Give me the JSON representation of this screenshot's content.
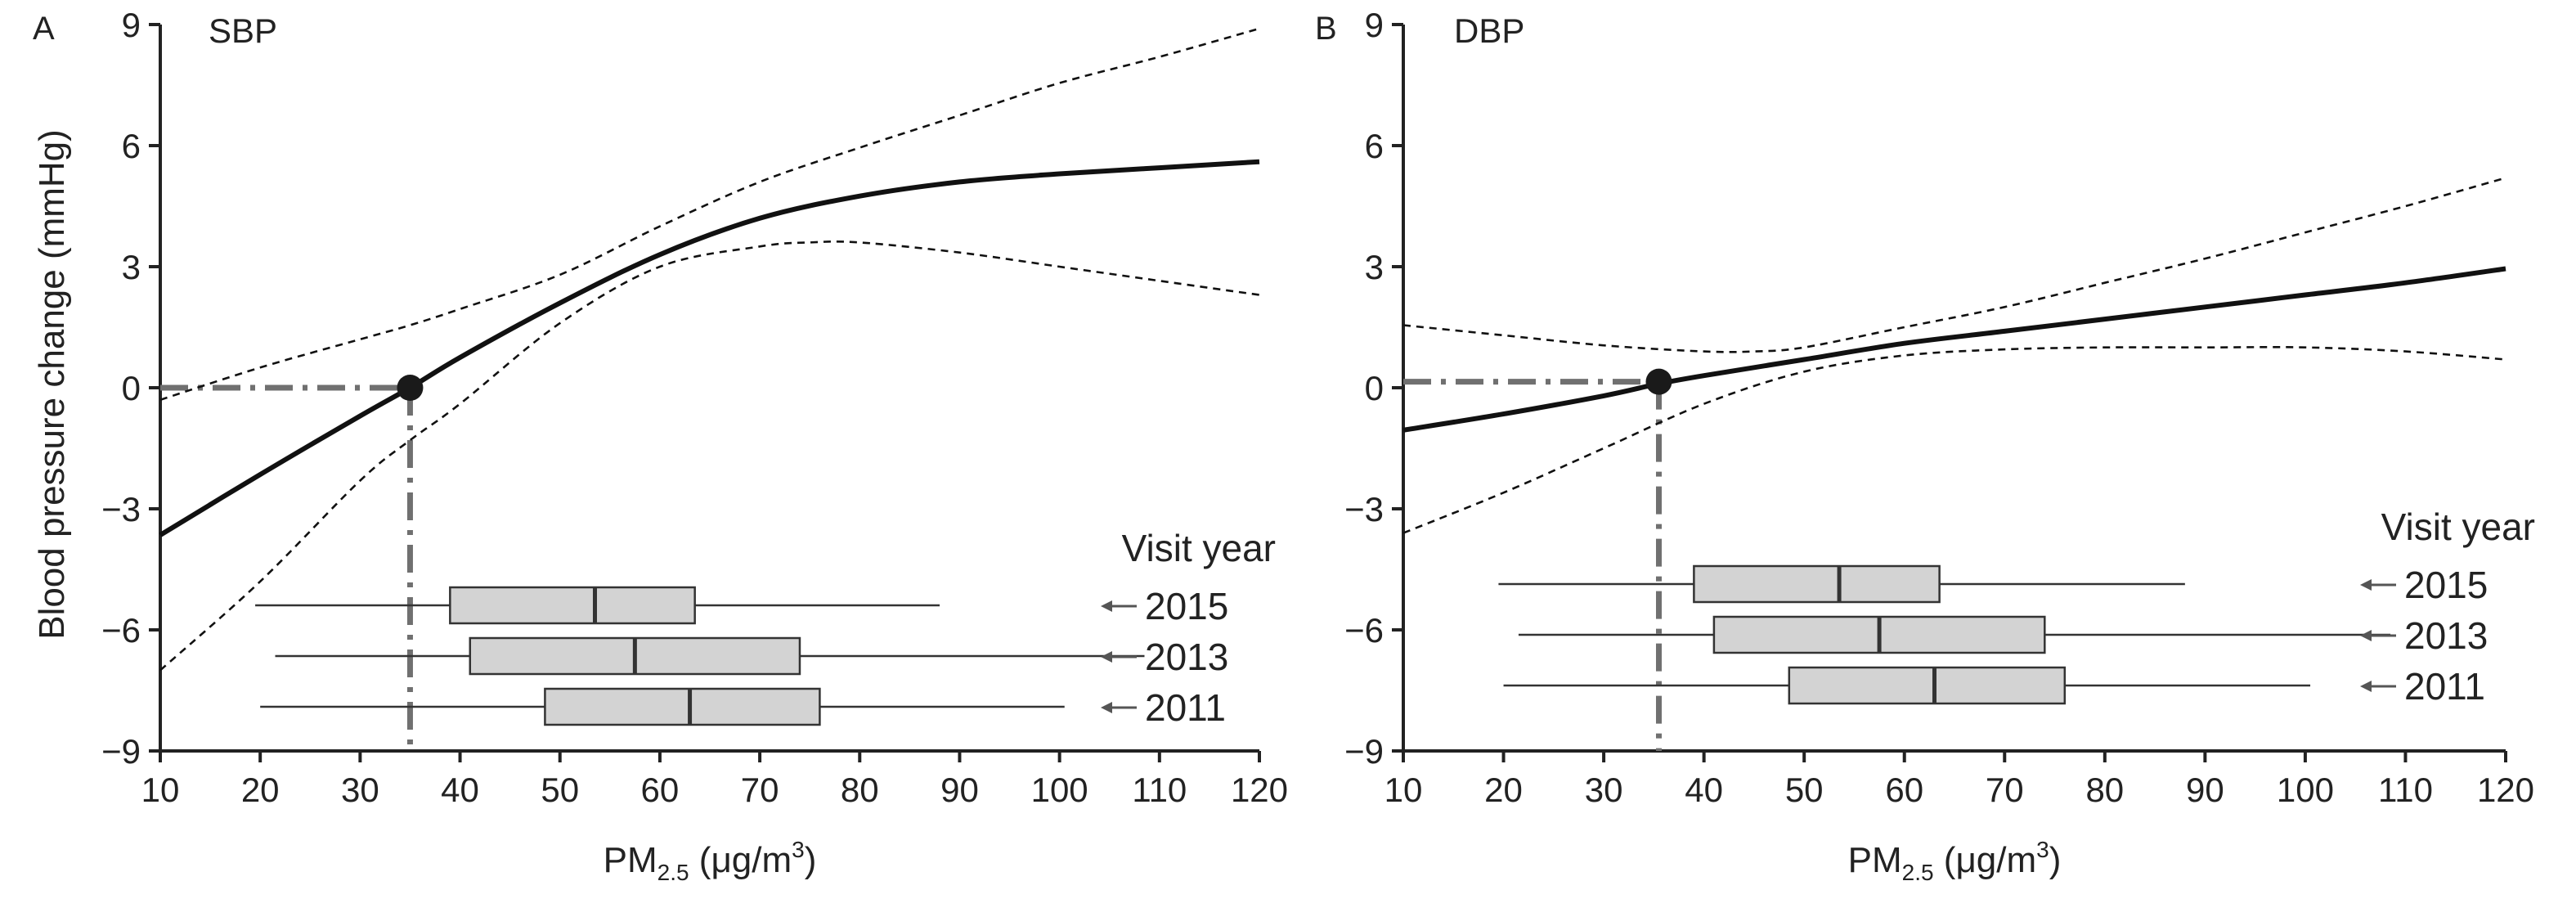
{
  "figure": {
    "ylabel": "Blood pressure change (mmHg)",
    "xlabel_main": "PM",
    "xlabel_sub": "2.5",
    "xlabel_unit_prefix": " (μg/m",
    "xlabel_unit_sup": "3",
    "xlabel_unit_suffix": ")",
    "legend_title": "Visit year"
  },
  "colors": {
    "curve": "#111111",
    "ci": "#111111",
    "reference": "#707070",
    "box_fill": "#d3d3d3",
    "box_stroke": "#333333",
    "arrow": "#555555"
  },
  "chart_data": [
    {
      "type": "line",
      "panel_letter": "A",
      "title": "SBP",
      "xlabel": "PM2.5 (μg/m3)",
      "ylabel": "Blood pressure change (mmHg)",
      "xlim": [
        10,
        120
      ],
      "ylim": [
        -9,
        9
      ],
      "xticks": [
        10,
        20,
        30,
        40,
        50,
        60,
        70,
        80,
        90,
        100,
        110,
        120
      ],
      "yticks": [
        -9,
        -6,
        -3,
        0,
        3,
        6,
        9
      ],
      "ytick_labels": [
        "−9",
        "−6",
        "−3",
        "0",
        "3",
        "6",
        "9"
      ],
      "grid": false,
      "series": [
        {
          "role": "estimate",
          "x": [
            10,
            20,
            30,
            35,
            40,
            50,
            60,
            70,
            80,
            90,
            100,
            110,
            120
          ],
          "y": [
            -3.65,
            -2.15,
            -0.7,
            0.0,
            0.75,
            2.1,
            3.3,
            4.2,
            4.75,
            5.1,
            5.3,
            5.45,
            5.6
          ]
        },
        {
          "role": "upper-ci",
          "x": [
            10,
            20,
            30,
            35,
            40,
            50,
            60,
            70,
            80,
            90,
            100,
            110,
            120
          ],
          "y": [
            -0.3,
            0.5,
            1.2,
            1.55,
            1.95,
            2.8,
            4.0,
            5.1,
            5.95,
            6.75,
            7.55,
            8.2,
            8.9
          ]
        },
        {
          "role": "lower-ci",
          "x": [
            10,
            20,
            30,
            35,
            40,
            50,
            60,
            70,
            75,
            80,
            90,
            100,
            110,
            120
          ],
          "y": [
            -7.0,
            -4.8,
            -2.3,
            -1.3,
            -0.4,
            1.6,
            3.0,
            3.5,
            3.6,
            3.6,
            3.35,
            3.0,
            2.65,
            2.3
          ]
        }
      ],
      "reference_point": {
        "x": 35,
        "y": 0
      },
      "boxplots": [
        {
          "year": "2015",
          "min": 19.5,
          "q1": 39,
          "median": 53.5,
          "q3": 63.5,
          "max": 88
        },
        {
          "year": "2013",
          "min": 21.5,
          "q1": 41,
          "median": 57.5,
          "q3": 74,
          "max": 108.5
        },
        {
          "year": "2011",
          "min": 20,
          "q1": 48.5,
          "median": 63,
          "q3": 76,
          "max": 100.5
        }
      ]
    },
    {
      "type": "line",
      "panel_letter": "B",
      "title": "DBP",
      "xlabel": "PM2.5 (μg/m3)",
      "ylabel": "",
      "xlim": [
        10,
        120
      ],
      "ylim": [
        -9,
        9
      ],
      "xticks": [
        10,
        20,
        30,
        40,
        50,
        60,
        70,
        80,
        90,
        100,
        110,
        120
      ],
      "yticks": [
        -9,
        -6,
        -3,
        0,
        3,
        6,
        9
      ],
      "ytick_labels": [
        "−9",
        "−6",
        "−3",
        "0",
        "3",
        "6",
        "9"
      ],
      "grid": false,
      "series": [
        {
          "role": "estimate",
          "x": [
            10,
            20,
            30,
            35.5,
            40,
            50,
            60,
            70,
            80,
            90,
            100,
            110,
            120
          ],
          "y": [
            -1.05,
            -0.65,
            -0.2,
            0.1,
            0.3,
            0.7,
            1.1,
            1.4,
            1.7,
            2.0,
            2.3,
            2.6,
            2.95
          ]
        },
        {
          "role": "upper-ci",
          "x": [
            10,
            20,
            30,
            40,
            45,
            50,
            60,
            70,
            80,
            90,
            100,
            110,
            120
          ],
          "y": [
            1.55,
            1.3,
            1.05,
            0.9,
            0.9,
            1.0,
            1.5,
            2.0,
            2.6,
            3.2,
            3.85,
            4.5,
            5.2
          ]
        },
        {
          "role": "lower-ci",
          "x": [
            10,
            20,
            30,
            40,
            50,
            60,
            70,
            80,
            90,
            100,
            110,
            120
          ],
          "y": [
            -3.6,
            -2.6,
            -1.5,
            -0.4,
            0.4,
            0.8,
            0.95,
            1.0,
            1.0,
            1.0,
            0.9,
            0.7
          ]
        }
      ],
      "reference_point": {
        "x": 35.5,
        "y": 0.15
      },
      "boxplots": [
        {
          "year": "2015",
          "min": 19.5,
          "q1": 39,
          "median": 53.5,
          "q3": 63.5,
          "max": 88
        },
        {
          "year": "2013",
          "min": 21.5,
          "q1": 41,
          "median": 57.5,
          "q3": 74,
          "max": 108.5
        },
        {
          "year": "2011",
          "min": 20,
          "q1": 48.5,
          "median": 63,
          "q3": 76,
          "max": 100.5
        }
      ]
    }
  ]
}
